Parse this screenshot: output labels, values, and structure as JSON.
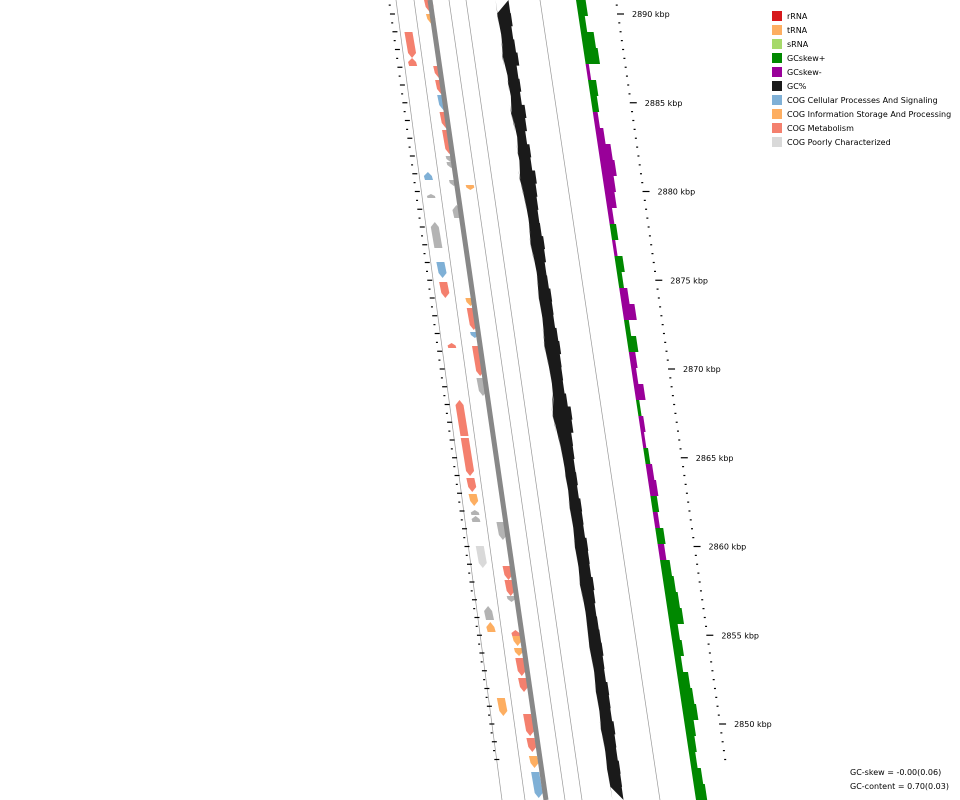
{
  "legend": [
    {
      "label": "rRNA",
      "color": "#d7191c"
    },
    {
      "label": "tRNA",
      "color": "#fdae61"
    },
    {
      "label": "sRNA",
      "color": "#a6d96a"
    },
    {
      "label": "GCskew+",
      "color": "#008800"
    },
    {
      "label": "GCskew-",
      "color": "#990099"
    },
    {
      "label": "GC%",
      "color": "#1a1a1a"
    },
    {
      "label": "COG Cellular Processes And Signaling",
      "color": "#7fb0d6"
    },
    {
      "label": "COG Information Storage And Processing",
      "color": "#fdae61"
    },
    {
      "label": "COG Metabolism",
      "color": "#f4806e"
    },
    {
      "label": "COG Poorly Characterized",
      "color": "#d9d9d9"
    }
  ],
  "ruler": {
    "labels": [
      "2890 kbp",
      "2885 kbp",
      "2880 kbp",
      "2875 kbp",
      "2870 kbp",
      "2865 kbp",
      "2860 kbp",
      "2855 kbp",
      "2850 kbp"
    ],
    "positions_kbp": [
      2890,
      2885,
      2880,
      2875,
      2870,
      2865,
      2860,
      2855,
      2850
    ]
  },
  "stats": {
    "gc_skew": "GC-skew = -0.00(0.06)",
    "gc_content": "GC-content = 0.70(0.03)"
  },
  "colors": {
    "backbone": "#888888",
    "track_line": "#999999",
    "cog_poorly_dark": "#b3b3b3"
  },
  "chart_data": {
    "type": "circular-genome-map",
    "visible_range_kbp": [
      2848,
      2893
    ],
    "gc_percent_profile": [
      0.55,
      0.6,
      0.45,
      0.55,
      0.7,
      0.4,
      0.5,
      0.35,
      0.65,
      0.5,
      0.3,
      0.55,
      0.45,
      0.75,
      0.6,
      0.5,
      0.4,
      0.45,
      0.6,
      0.5,
      0.35,
      0.4,
      0.55,
      0.5,
      0.45,
      0.6,
      0.7,
      0.55,
      0.5,
      0.45,
      0.6,
      0.9,
      0.8,
      0.55,
      0.5,
      0.4,
      0.45,
      0.35,
      0.5,
      0.45,
      0.4,
      0.55,
      0.5,
      0.45,
      0.6,
      0.5,
      0.4,
      0.45,
      0.5,
      0.55,
      0.45,
      0.4,
      0.55,
      0.5,
      0.45,
      0.6,
      0.5,
      0.45,
      0.55,
      0.5,
      0.45
    ],
    "gc_skew_profile": [
      0.6,
      0.4,
      0.8,
      0.9,
      -0.2,
      0.5,
      0.4,
      -0.3,
      -0.5,
      -0.8,
      -0.9,
      -0.7,
      -0.6,
      -0.3,
      0.4,
      -0.2,
      0.5,
      0.3,
      -0.5,
      -0.8,
      0.3,
      0.6,
      -0.4,
      -0.3,
      -0.6,
      0.2,
      -0.3,
      -0.2,
      0.3,
      -0.4,
      -0.5,
      0.4,
      -0.3,
      0.5,
      -0.4,
      0.6,
      0.7,
      0.8,
      0.9,
      0.5,
      0.6,
      0.4,
      0.7,
      0.8,
      0.9,
      0.6,
      0.5,
      0.4,
      0.6,
      0.7
    ]
  }
}
